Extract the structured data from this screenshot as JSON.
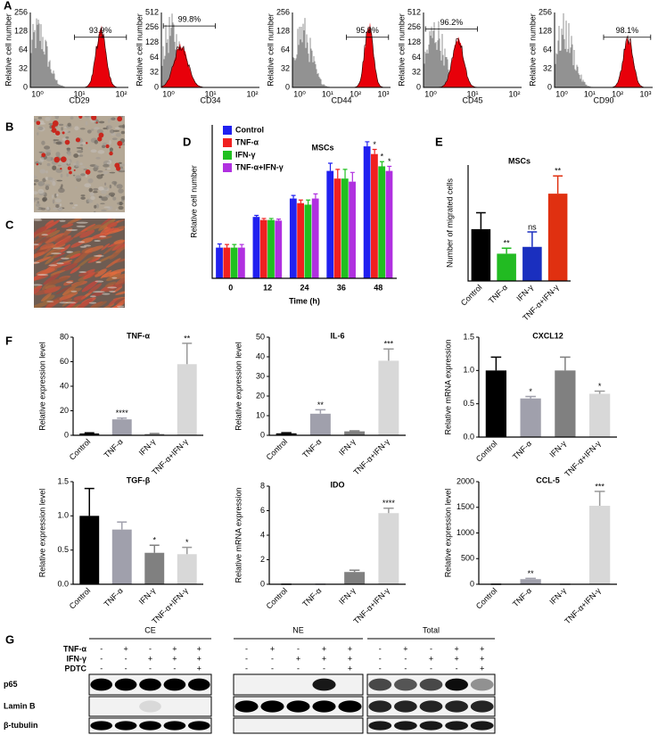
{
  "panel_labels": [
    "A",
    "B",
    "C",
    "D",
    "E",
    "F",
    "G"
  ],
  "flow": {
    "y_label": "Relative cell number",
    "panels": [
      {
        "marker": "CD29",
        "percent": "93.9%",
        "yticks": [
          256,
          128,
          64,
          32,
          0
        ],
        "xticks": [
          "10⁰",
          "10¹",
          "10²"
        ]
      },
      {
        "marker": "CD34",
        "percent": "99.8%",
        "yticks": [
          512,
          256,
          128,
          64,
          32,
          0
        ],
        "xticks": [
          "10⁰",
          "10¹",
          "10²"
        ]
      },
      {
        "marker": "CD44",
        "percent": "95.9%",
        "yticks": [
          256,
          128,
          64,
          32,
          0
        ],
        "xticks": [
          "10⁰",
          "10¹",
          "10²",
          "10³"
        ]
      },
      {
        "marker": "CD45",
        "percent": "96.2%",
        "yticks": [
          512,
          256,
          128,
          64,
          32,
          0
        ],
        "xticks": [
          "10⁰",
          "10¹",
          "10²"
        ]
      },
      {
        "marker": "CD90",
        "percent": "98.1%",
        "yticks": [
          256,
          128,
          64,
          32,
          0
        ],
        "xticks": [
          "10⁰",
          "10¹",
          "10²",
          "10³"
        ]
      }
    ]
  },
  "chart_data": [
    {
      "type": "grouped-bar",
      "title": "MSCs",
      "x_label": "Time (h)",
      "y_label": "Relative cell number",
      "categories": [
        "0",
        "12",
        "24",
        "36",
        "48"
      ],
      "ylim": [
        0,
        5
      ],
      "series": [
        {
          "name": "Control",
          "color": "#2020f0",
          "values": [
            1,
            2,
            2.6,
            3.5,
            4.3
          ],
          "errors": [
            0.12,
            0.05,
            0.1,
            0.25,
            0.15
          ]
        },
        {
          "name": "TNF-α",
          "color": "#f02020",
          "values": [
            1,
            1.9,
            2.45,
            3.25,
            4.05
          ],
          "errors": [
            0.1,
            0.05,
            0.1,
            0.3,
            0.15
          ],
          "annotations": [
            null,
            null,
            null,
            null,
            "*"
          ]
        },
        {
          "name": "IFN-γ",
          "color": "#20c020",
          "values": [
            1,
            1.9,
            2.4,
            3.25,
            3.65
          ],
          "errors": [
            0.1,
            0.05,
            0.15,
            0.3,
            0.15
          ],
          "annotations": [
            null,
            null,
            null,
            null,
            "*"
          ]
        },
        {
          "name": "TNF-α+IFN-γ",
          "color": "#b030e0",
          "values": [
            1,
            1.88,
            2.6,
            3.15,
            3.5
          ],
          "errors": [
            0.1,
            0.05,
            0.15,
            0.3,
            0.15
          ],
          "annotations": [
            null,
            null,
            null,
            null,
            "*"
          ]
        }
      ]
    },
    {
      "type": "bar",
      "title": "MSCs",
      "y_label": "Number of migrated cells",
      "categories": [
        "Control",
        "TNF-α",
        "IFN-γ",
        "TNF-α+IFN-γ"
      ],
      "values": [
        38,
        20,
        25,
        64
      ],
      "errors": [
        12,
        4,
        11,
        13
      ],
      "colors": [
        "#000000",
        "#22bb22",
        "#1a2fbf",
        "#e03010"
      ],
      "annotations": [
        null,
        "**",
        "ns",
        "**"
      ],
      "ylim": [
        0,
        85
      ]
    },
    {
      "type": "bar",
      "title": "TNF-α",
      "y_label": "Relative expression level",
      "categories": [
        "Control",
        "TNF-α",
        "IFN-γ",
        "TNF-α+IFN-γ"
      ],
      "values": [
        1.5,
        13,
        1,
        58
      ],
      "errors": [
        0.5,
        1,
        0.5,
        17
      ],
      "colors": [
        "#000000",
        "#a0a0ac",
        "#808080",
        "#d8d8d8"
      ],
      "annotations": [
        null,
        "****",
        null,
        "**"
      ],
      "ylim": [
        0,
        80
      ],
      "yticks": [
        0,
        20,
        40,
        60,
        80
      ]
    },
    {
      "type": "bar",
      "title": "IL-6",
      "y_label": "Relative expression level",
      "categories": [
        "Control",
        "TNF-α",
        "IFN-γ",
        "TNF-α+IFN-γ"
      ],
      "values": [
        1,
        11,
        2,
        38
      ],
      "errors": [
        0.3,
        2,
        0.3,
        6
      ],
      "colors": [
        "#000000",
        "#a0a0ac",
        "#808080",
        "#d8d8d8"
      ],
      "annotations": [
        null,
        "**",
        null,
        "***"
      ],
      "ylim": [
        0,
        50
      ],
      "yticks": [
        0,
        10,
        20,
        30,
        40,
        50
      ]
    },
    {
      "type": "bar",
      "title": "CXCL12",
      "y_label": "Relative mRNA expression",
      "categories": [
        "Control",
        "TNF-α",
        "IFN-γ",
        "TNF-α+IFN-γ"
      ],
      "values": [
        1.0,
        0.58,
        1.0,
        0.65
      ],
      "errors": [
        0.2,
        0.03,
        0.2,
        0.04
      ],
      "colors": [
        "#000000",
        "#a0a0ac",
        "#808080",
        "#d8d8d8"
      ],
      "annotations": [
        null,
        "*",
        null,
        "*"
      ],
      "ylim": [
        0,
        1.5
      ],
      "yticks": [
        {
          "value": 0,
          "label": "0.0"
        },
        {
          "value": 0.5,
          "label": "0.5"
        },
        {
          "value": 1,
          "label": "1.0"
        },
        {
          "value": 1.5,
          "label": "1.5"
        }
      ]
    },
    {
      "type": "bar",
      "title": "TGF-β",
      "y_label": "Relative expression level",
      "categories": [
        "Control",
        "TNF-α",
        "IFN-γ",
        "TNF-α+IFN-γ"
      ],
      "values": [
        1.0,
        0.8,
        0.46,
        0.44
      ],
      "errors": [
        0.4,
        0.11,
        0.11,
        0.1
      ],
      "colors": [
        "#000000",
        "#a0a0ac",
        "#808080",
        "#d8d8d8"
      ],
      "annotations": [
        null,
        null,
        "*",
        "*"
      ],
      "ylim": [
        0,
        1.5
      ],
      "yticks": [
        {
          "value": 0,
          "label": "0.0"
        },
        {
          "value": 0.5,
          "label": "0.5"
        },
        {
          "value": 1,
          "label": "1.0"
        },
        {
          "value": 1.5,
          "label": "1.5"
        }
      ]
    },
    {
      "type": "bar",
      "title": "IDO",
      "y_label": "Relative mRNA expression",
      "categories": [
        "Control",
        "TNF-α",
        "IFN-γ",
        "TNF-α+IFN-γ"
      ],
      "values": [
        0,
        0,
        1,
        5.8
      ],
      "errors": [
        0,
        0,
        0.15,
        0.4
      ],
      "colors": [
        "#000000",
        "#a0a0ac",
        "#808080",
        "#d8d8d8"
      ],
      "annotations": [
        null,
        null,
        null,
        "****"
      ],
      "ylim": [
        0,
        8
      ],
      "yticks": [
        0,
        2,
        4,
        6,
        8
      ]
    },
    {
      "type": "bar",
      "title": "CCL-5",
      "y_label": "Relative expression level",
      "categories": [
        "Control",
        "TNF-α",
        "IFN-γ",
        "TNF-α+IFN-γ"
      ],
      "values": [
        0,
        100,
        0,
        1530
      ],
      "errors": [
        0,
        15,
        0,
        280
      ],
      "colors": [
        "#000000",
        "#a0a0ac",
        "#808080",
        "#d8d8d8"
      ],
      "annotations": [
        null,
        "**",
        null,
        "***"
      ],
      "ylim": [
        0,
        2000
      ],
      "yticks": [
        0,
        500,
        1000,
        1500,
        2000
      ]
    }
  ],
  "blot": {
    "groups": [
      "CE",
      "NE",
      "Total"
    ],
    "conditions": [
      {
        "name": "TNF-α",
        "signs": [
          "-",
          "+",
          "-",
          "+",
          "+"
        ]
      },
      {
        "name": "IFN-γ",
        "signs": [
          "-",
          "-",
          "+",
          "+",
          "+"
        ]
      },
      {
        "name": "PDTC",
        "signs": [
          "-",
          "-",
          "-",
          "-",
          "+"
        ]
      }
    ],
    "proteins": [
      "p65",
      "Lamin B",
      "β-tubulin"
    ]
  }
}
